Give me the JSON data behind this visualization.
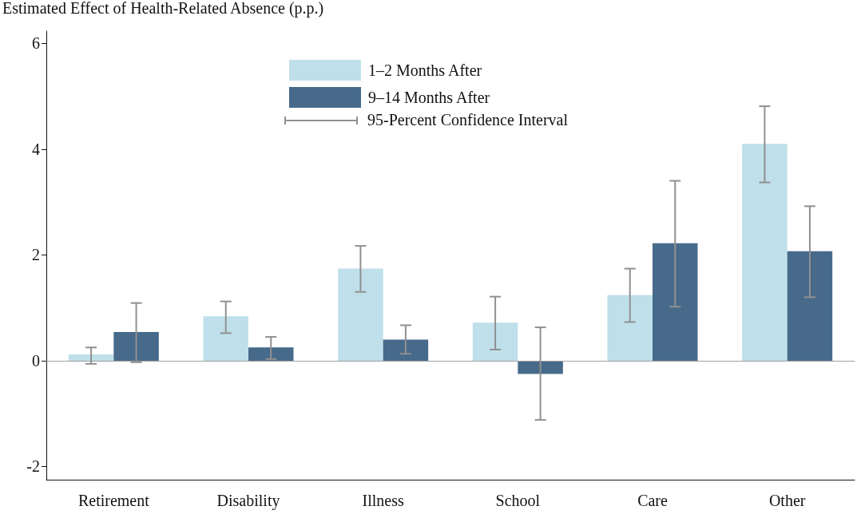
{
  "chart_data": {
    "type": "bar",
    "ylabel": "Estimated Effect of Health-Related Absence (p.p.)",
    "categories": [
      "Retirement",
      "Disability",
      "Illness",
      "School",
      "Care",
      "Other"
    ],
    "series": [
      {
        "name": "1–2 Months After",
        "color": "#bfe0ea",
        "values": [
          0.12,
          0.84,
          1.74,
          0.72,
          1.24,
          4.1
        ],
        "errors": [
          [
            -0.06,
            0.25
          ],
          [
            0.52,
            1.12
          ],
          [
            1.3,
            2.17
          ],
          [
            0.21,
            1.21
          ],
          [
            0.73,
            1.74
          ],
          [
            3.37,
            4.81
          ]
        ]
      },
      {
        "name": "9–14 Months After",
        "color": "#476a8a",
        "values": [
          0.54,
          0.25,
          0.4,
          -0.25,
          2.22,
          2.07
        ],
        "errors": [
          [
            -0.03,
            1.09
          ],
          [
            0.03,
            0.45
          ],
          [
            0.13,
            0.67
          ],
          [
            -1.12,
            0.63
          ],
          [
            1.02,
            3.4
          ],
          [
            1.2,
            2.92
          ]
        ]
      }
    ],
    "annotations": [
      "95-Percent Confidence Interval"
    ],
    "ylim": [
      -2.25,
      6.23
    ],
    "yticks": [
      -2,
      0,
      2,
      4,
      6
    ],
    "ref_lines": [
      {
        "axis": "y",
        "value": 0,
        "color": "#a0a0a0"
      }
    ],
    "grid": false,
    "legend": "top"
  }
}
